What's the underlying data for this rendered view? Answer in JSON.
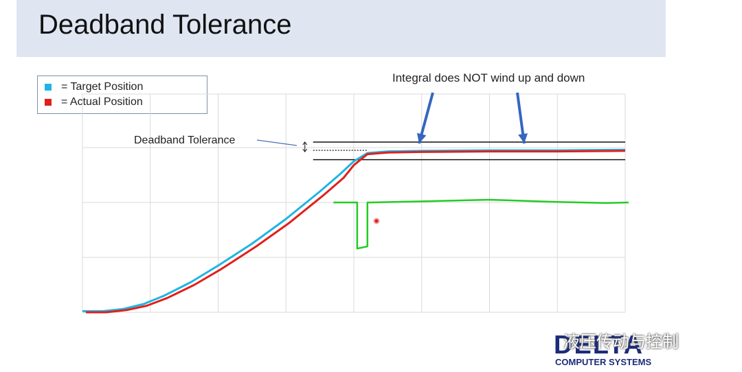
{
  "slide": {
    "title": "Deadband Tolerance"
  },
  "legend": {
    "items": [
      {
        "color": "#1fb5e3",
        "label": "= Target Position"
      },
      {
        "color": "#e0201c",
        "label": "= Actual Position"
      }
    ]
  },
  "annotations": {
    "deadband_label": "Deadband Tolerance",
    "integral_note": "Integral does NOT wind up and down"
  },
  "logo": {
    "brand": "DELTA",
    "subtitle": "COMPUTER SYSTEMS"
  },
  "watermark": "液压传动与控制",
  "colors": {
    "target": "#1fb5e3",
    "actual": "#e0201c",
    "integral": "#22cc22",
    "arrow": "#3566c0",
    "grid": "#d9d9d9"
  },
  "chart_data": {
    "type": "line",
    "grid": true,
    "xlim": [
      0,
      8
    ],
    "ylim": [
      0,
      3
    ],
    "deadband": {
      "setpoint": 2.95,
      "upper": 3.1,
      "lower": 2.78
    },
    "series": [
      {
        "name": "Target Position",
        "x": [
          0,
          0.3,
          0.6,
          0.9,
          1.2,
          1.6,
          2.0,
          2.5,
          3.0,
          3.5,
          3.8,
          4.0,
          4.2,
          4.5,
          5.0,
          6.0,
          7.0,
          8.0
        ],
        "y": [
          0.02,
          0.02,
          0.06,
          0.15,
          0.3,
          0.55,
          0.85,
          1.25,
          1.7,
          2.2,
          2.52,
          2.75,
          2.9,
          2.93,
          2.94,
          2.95,
          2.95,
          2.96
        ]
      },
      {
        "name": "Actual Position",
        "x": [
          0.05,
          0.35,
          0.65,
          0.95,
          1.25,
          1.65,
          2.05,
          2.55,
          3.05,
          3.55,
          3.85,
          4.0,
          4.2,
          4.5,
          5.0,
          6.0,
          7.0,
          8.0
        ],
        "y": [
          0.0,
          0.0,
          0.04,
          0.12,
          0.26,
          0.5,
          0.79,
          1.19,
          1.63,
          2.13,
          2.45,
          2.68,
          2.88,
          2.91,
          2.92,
          2.93,
          2.93,
          2.94
        ]
      },
      {
        "name": "Integral",
        "x": [
          3.7,
          4.05,
          4.05,
          4.2,
          4.2,
          4.25,
          5.0,
          6.0,
          7.0,
          7.7,
          8.05
        ],
        "y": [
          2.0,
          2.0,
          1.16,
          1.2,
          2.0,
          2.0,
          2.02,
          2.05,
          2.01,
          1.99,
          2.0
        ]
      }
    ]
  }
}
